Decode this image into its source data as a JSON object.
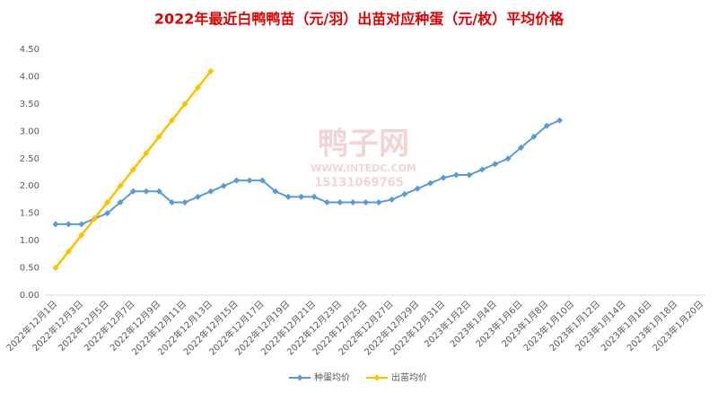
{
  "chart_data": {
    "type": "line",
    "title": "2022年最近白鸭鸭苗（元/羽）出苗对应种蛋（元/枚）平均价格",
    "watermark": {
      "name": "鸭子网",
      "site": "WWW.INTEDC.COM",
      "phone": "15131069765"
    },
    "categories": [
      "2022年12月1日",
      null,
      "2022年12月3日",
      null,
      "2022年12月5日",
      null,
      "2022年12月7日",
      null,
      "2022年12月9日",
      null,
      "2022年12月11日",
      null,
      "2022年12月13日",
      null,
      "2022年12月15日",
      null,
      "2022年12月17日",
      null,
      "2022年12月19日",
      null,
      "2022年12月21日",
      null,
      "2022年12月23日",
      null,
      "2022年12月25日",
      null,
      "2022年12月27日",
      null,
      "2022年12月29日",
      null,
      "2022年12月31日",
      null,
      "2023年1月2日",
      null,
      "2023年1月4日",
      null,
      "2023年1月6日",
      null,
      "2023年1月8日",
      null,
      "2023年1月10日",
      null,
      "2023年1月12日",
      null,
      "2023年1月14日",
      null,
      "2023年1月16日",
      null,
      "2023年1月18日",
      null,
      "2023年1月20日"
    ],
    "series": [
      {
        "name": "种蛋均价",
        "color": "#5b9bd5",
        "values": [
          1.3,
          1.3,
          1.3,
          1.4,
          1.5,
          1.7,
          1.9,
          1.9,
          1.9,
          1.7,
          1.7,
          1.8,
          1.9,
          2.0,
          2.1,
          2.1,
          2.1,
          1.9,
          1.8,
          1.8,
          1.8,
          1.7,
          1.7,
          1.7,
          1.7,
          1.7,
          1.75,
          1.85,
          1.95,
          2.05,
          2.15,
          2.2,
          2.2,
          2.3,
          2.4,
          2.5,
          2.7,
          2.9,
          3.1,
          3.2,
          null,
          null,
          null,
          null,
          null,
          null,
          null,
          null,
          null,
          null,
          null
        ]
      },
      {
        "name": "出苗均价",
        "color": "#ffc000",
        "values": [
          0.5,
          0.8,
          1.1,
          1.4,
          1.7,
          2.0,
          2.3,
          2.6,
          2.9,
          3.2,
          3.5,
          3.8,
          4.1,
          null,
          null,
          null,
          null,
          null,
          null,
          null,
          null,
          null,
          null,
          null,
          null,
          null,
          null,
          null,
          null,
          null,
          null,
          null,
          null,
          null,
          null,
          null,
          null,
          null,
          null,
          null,
          null,
          null,
          null,
          null,
          null,
          null,
          null,
          null,
          null,
          null,
          null
        ]
      }
    ],
    "ylim": [
      0,
      4.5
    ],
    "yticks": [
      {
        "value": 0,
        "label": "0.00"
      },
      {
        "value": 0.5,
        "label": "0.50"
      },
      {
        "value": 1,
        "label": "1.00"
      },
      {
        "value": 1.5,
        "label": "1.50"
      },
      {
        "value": 2,
        "label": "2.00"
      },
      {
        "value": 2.5,
        "label": "2.50"
      },
      {
        "value": 3,
        "label": "3.00"
      },
      {
        "value": 3.5,
        "label": "3.50"
      },
      {
        "value": 4,
        "label": "4.00"
      },
      {
        "value": 4.5,
        "label": "4.50"
      }
    ],
    "grid": false,
    "legend": "bottom"
  }
}
